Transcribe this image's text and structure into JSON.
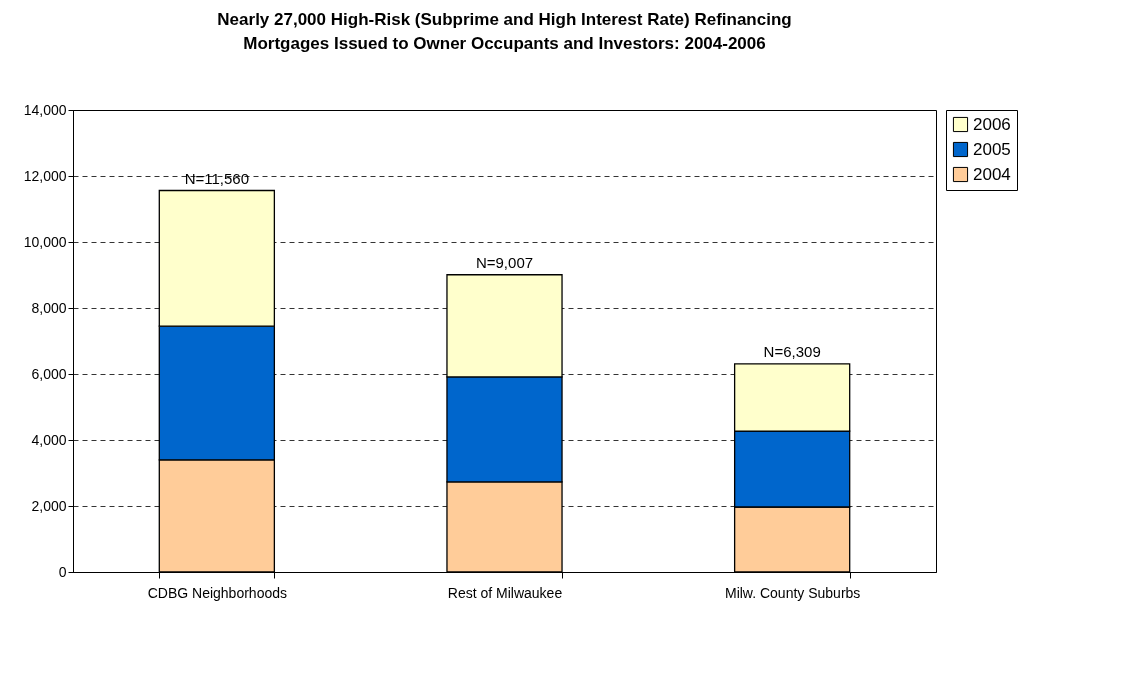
{
  "chart_data": {
    "type": "bar",
    "title": [
      "Nearly 27,000 High-Risk (Subprime and High Interest Rate) Refinancing",
      "Mortgages Issued to Owner Occupants and Investors: 2004-2006"
    ],
    "categories": [
      "CDBG Neighborhoods",
      "Rest of Milwaukee",
      "Milw. County Suburbs"
    ],
    "series": [
      {
        "name": "2004",
        "color": "#ffcc99",
        "values": [
          3400,
          2730,
          1970
        ]
      },
      {
        "name": "2005",
        "color": "#0066cc",
        "values": [
          4050,
          3180,
          2300
        ]
      },
      {
        "name": "2006",
        "color": "#ffffcc",
        "values": [
          4110,
          3097,
          2039
        ]
      }
    ],
    "stacked": true,
    "totals": [
      "N=11,560",
      "N=9,007",
      "N=6,309"
    ],
    "ylim": [
      0,
      14000
    ],
    "yticks": [
      0,
      {
        "value": 2000,
        "label": "2,000"
      },
      {
        "value": 4000,
        "label": "4,000"
      },
      {
        "value": 6000,
        "label": "6,000"
      },
      {
        "value": 8000,
        "label": "8,000"
      },
      {
        "value": 10000,
        "label": "10,000"
      },
      {
        "value": 12000,
        "label": "12,000"
      },
      {
        "value": 14000,
        "label": "14,000"
      }
    ],
    "grid": "y",
    "legend": "right"
  }
}
